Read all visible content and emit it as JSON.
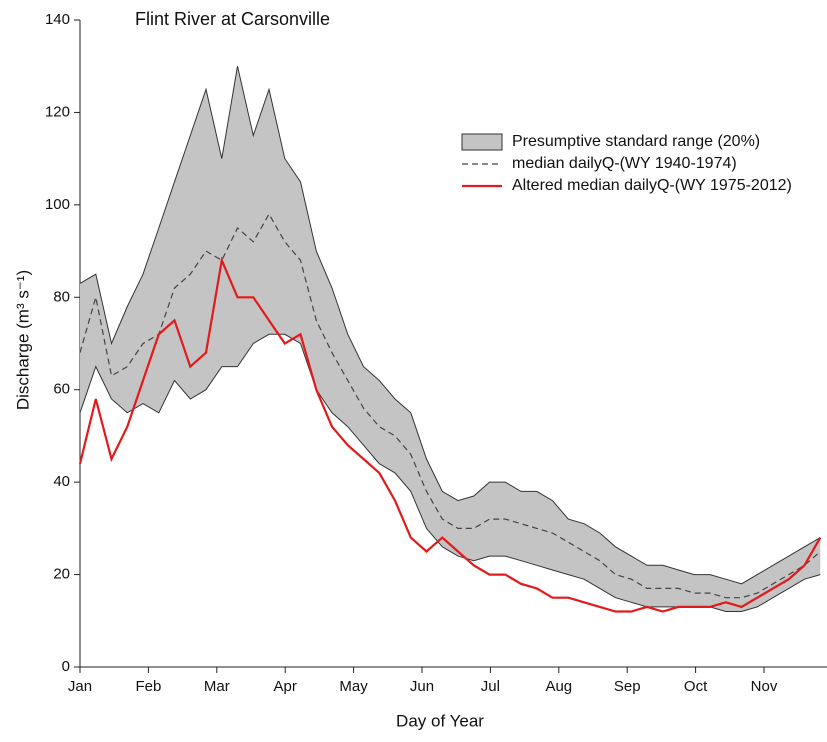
{
  "chart_data": {
    "type": "line",
    "title": "Flint River at Carsonville",
    "xlabel": "Day of Year",
    "ylabel": "Discharge (m³ s⁻¹)",
    "xlim": [
      0,
      332
    ],
    "ylim": [
      0,
      140
    ],
    "yticks": [
      0,
      20,
      40,
      60,
      80,
      100,
      120,
      140
    ],
    "xticks": [
      {
        "value": 0,
        "label": "Jan"
      },
      {
        "value": 30.4,
        "label": "Feb"
      },
      {
        "value": 60.8,
        "label": "Mar"
      },
      {
        "value": 91.2,
        "label": "Apr"
      },
      {
        "value": 121.6,
        "label": "May"
      },
      {
        "value": 152,
        "label": "Jun"
      },
      {
        "value": 182.4,
        "label": "Jul"
      },
      {
        "value": 212.8,
        "label": "Aug"
      },
      {
        "value": 243.2,
        "label": "Sep"
      },
      {
        "value": 273.6,
        "label": "Oct"
      },
      {
        "value": 304,
        "label": "Nov"
      }
    ],
    "x": [
      0,
      7,
      14,
      21,
      28,
      35,
      42,
      49,
      56,
      63,
      70,
      77,
      84,
      91,
      98,
      105,
      112,
      119,
      126,
      133,
      140,
      147,
      154,
      161,
      168,
      175,
      182,
      189,
      196,
      203,
      210,
      217,
      224,
      231,
      238,
      245,
      252,
      259,
      266,
      273,
      280,
      287,
      294,
      301,
      308,
      315,
      322,
      329
    ],
    "series": [
      {
        "name": "Presumptive standard range (20%)",
        "color": "#c4c4c4",
        "edge_color": "#333333",
        "upper": [
          83,
          85,
          70,
          78,
          85,
          95,
          105,
          115,
          125,
          110,
          130,
          115,
          125,
          110,
          105,
          90,
          82,
          72,
          65,
          62,
          58,
          55,
          45,
          38,
          36,
          37,
          40,
          40,
          38,
          38,
          36,
          32,
          31,
          29,
          26,
          24,
          22,
          22,
          21,
          20,
          20,
          19,
          18,
          20,
          22,
          24,
          26,
          28
        ],
        "lower": [
          55,
          65,
          58,
          55,
          57,
          55,
          62,
          58,
          60,
          65,
          65,
          70,
          72,
          72,
          70,
          60,
          55,
          52,
          48,
          44,
          42,
          38,
          30,
          26,
          24,
          23,
          24,
          24,
          23,
          22,
          21,
          20,
          19,
          17,
          15,
          14,
          13,
          13,
          13,
          13,
          13,
          12,
          12,
          13,
          15,
          17,
          19,
          20
        ]
      },
      {
        "name": "median dailyQ-(WY 1940-1974)",
        "color": "#444444",
        "dashed": true,
        "values": [
          68,
          80,
          63,
          65,
          70,
          72,
          82,
          85,
          90,
          88,
          95,
          92,
          98,
          92,
          88,
          75,
          68,
          62,
          56,
          52,
          50,
          46,
          38,
          32,
          30,
          30,
          32,
          32,
          31,
          30,
          29,
          27,
          25,
          23,
          20,
          19,
          17,
          17,
          17,
          16,
          16,
          15,
          15,
          16,
          18,
          20,
          22,
          25
        ]
      },
      {
        "name": "Altered median dailyQ-(WY 1975-2012)",
        "color": "#e31a1c",
        "dashed": false,
        "values": [
          44,
          58,
          45,
          52,
          62,
          72,
          75,
          65,
          68,
          88,
          80,
          80,
          75,
          70,
          72,
          60,
          52,
          48,
          45,
          42,
          36,
          28,
          25,
          28,
          25,
          22,
          20,
          20,
          18,
          17,
          15,
          15,
          14,
          13,
          12,
          12,
          13,
          12,
          13,
          13,
          13,
          14,
          13,
          15,
          17,
          19,
          22,
          28
        ]
      }
    ]
  }
}
